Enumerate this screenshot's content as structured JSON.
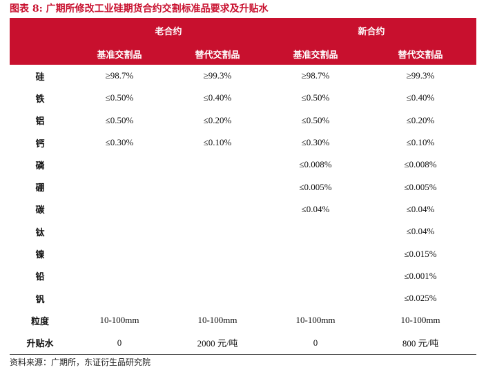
{
  "title": "图表 8: 广期所修改工业硅期货合约交割标准品要求及升贴水",
  "header": {
    "group_old": "老合约",
    "group_new": "新合约",
    "sub": [
      "基准交割品",
      "替代交割品",
      "基准交割品",
      "替代交割品"
    ]
  },
  "rows": [
    {
      "label": "硅",
      "cells": [
        "≥98.7%",
        "≥99.3%",
        "≥98.7%",
        "≥99.3%"
      ]
    },
    {
      "label": "铁",
      "cells": [
        "≤0.50%",
        "≤0.40%",
        "≤0.50%",
        "≤0.40%"
      ]
    },
    {
      "label": "铝",
      "cells": [
        "≤0.50%",
        "≤0.20%",
        "≤0.50%",
        "≤0.20%"
      ]
    },
    {
      "label": "钙",
      "cells": [
        "≤0.30%",
        "≤0.10%",
        "≤0.30%",
        "≤0.10%"
      ]
    },
    {
      "label": "磷",
      "cells": [
        "",
        "",
        "≤0.008%",
        "≤0.008%"
      ]
    },
    {
      "label": "硼",
      "cells": [
        "",
        "",
        "≤0.005%",
        "≤0.005%"
      ]
    },
    {
      "label": "碳",
      "cells": [
        "",
        "",
        "≤0.04%",
        "≤0.04%"
      ]
    },
    {
      "label": "钛",
      "cells": [
        "",
        "",
        "",
        "≤0.04%"
      ]
    },
    {
      "label": "镍",
      "cells": [
        "",
        "",
        "",
        "≤0.015%"
      ]
    },
    {
      "label": "铅",
      "cells": [
        "",
        "",
        "",
        "≤0.001%"
      ]
    },
    {
      "label": "钒",
      "cells": [
        "",
        "",
        "",
        "≤0.025%"
      ]
    },
    {
      "label": "粒度",
      "cells": [
        "10-100mm",
        "10-100mm",
        "10-100mm",
        "10-100mm"
      ]
    },
    {
      "label": "升贴水",
      "cells": [
        "0",
        "2000 元/吨",
        "0",
        "800 元/吨"
      ]
    }
  ],
  "source": "资料来源：广期所，东证衍生品研究院",
  "colors": {
    "accent": "#c8102e"
  }
}
